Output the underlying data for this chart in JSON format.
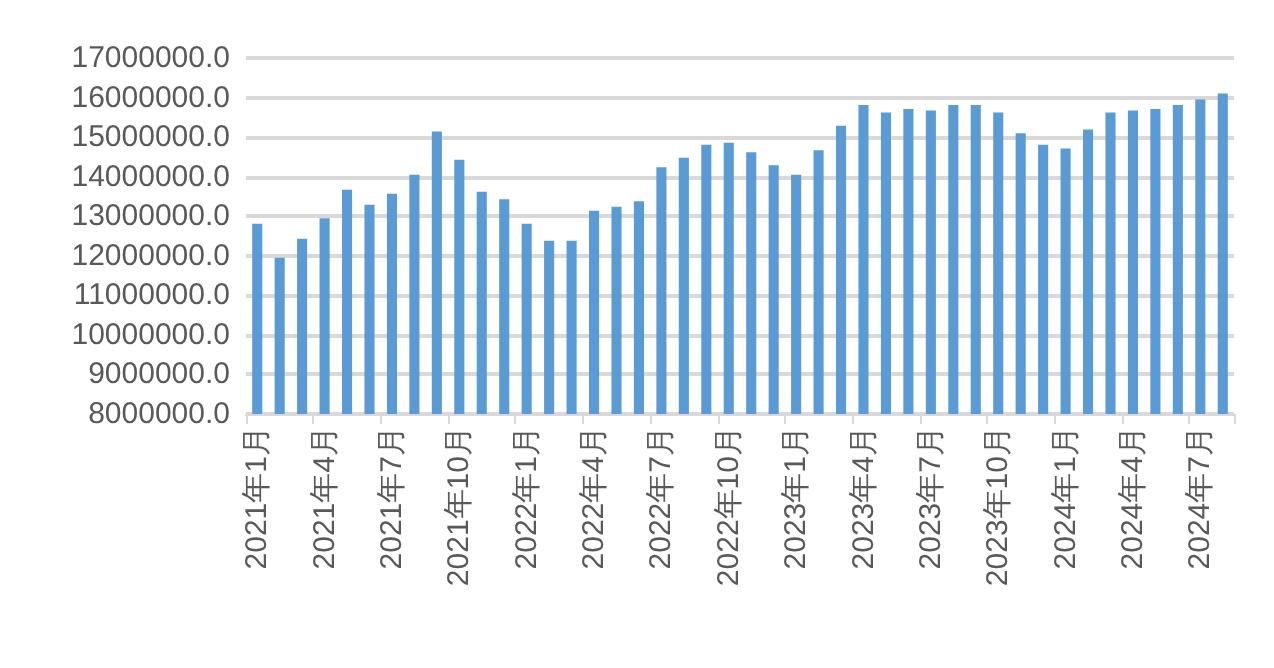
{
  "chart_data": {
    "type": "bar",
    "categories": [
      "2021年1月",
      null,
      null,
      "2021年4月",
      null,
      null,
      "2021年7月",
      null,
      null,
      "2021年10月",
      null,
      null,
      "2022年1月",
      null,
      null,
      "2022年4月",
      null,
      null,
      "2022年7月",
      null,
      null,
      "2022年10月",
      null,
      null,
      "2023年1月",
      null,
      null,
      "2023年4月",
      null,
      null,
      "2023年7月",
      null,
      null,
      "2023年10月",
      null,
      null,
      "2024年1月",
      null,
      null,
      "2024年4月",
      null,
      null,
      "2024年7月",
      null
    ],
    "values": [
      12810000,
      11950000,
      12430000,
      12950000,
      13670000,
      13290000,
      13570000,
      14050000,
      15140000,
      14430000,
      13620000,
      13430000,
      12810000,
      12380000,
      12380000,
      13140000,
      13240000,
      13380000,
      14240000,
      14480000,
      14810000,
      14860000,
      14620000,
      14290000,
      14050000,
      14670000,
      15290000,
      15810000,
      15620000,
      15710000,
      15670000,
      15810000,
      15810000,
      15620000,
      15100000,
      14810000,
      14710000,
      15190000,
      15620000,
      15670000,
      15710000,
      15810000,
      15950000,
      16100000
    ],
    "color": "#5b9bd5",
    "ylim": [
      8000000,
      17000000
    ],
    "yticks": [
      {
        "value": 8000000,
        "label": "8000000.0"
      },
      {
        "value": 9000000,
        "label": "9000000.0"
      },
      {
        "value": 10000000,
        "label": "10000000.0"
      },
      {
        "value": 11000000,
        "label": "11000000.0"
      },
      {
        "value": 12000000,
        "label": "12000000.0"
      },
      {
        "value": 13000000,
        "label": "13000000.0"
      },
      {
        "value": 14000000,
        "label": "14000000.0"
      },
      {
        "value": 15000000,
        "label": "15000000.0"
      },
      {
        "value": 16000000,
        "label": "16000000.0"
      },
      {
        "value": 17000000,
        "label": "17000000.0"
      }
    ],
    "grid": "y"
  }
}
